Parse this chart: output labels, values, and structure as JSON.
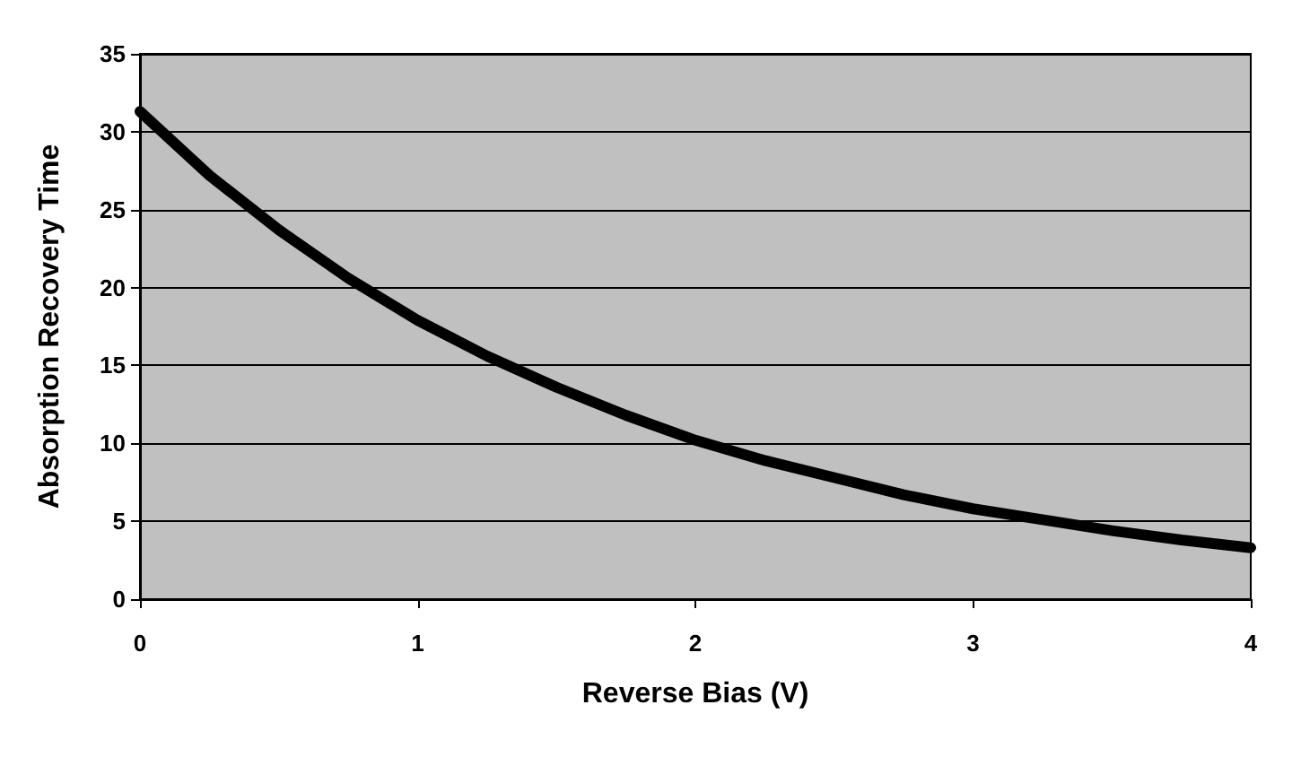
{
  "chart_data": {
    "type": "line",
    "xlabel": "Reverse Bias (V)",
    "ylabel": "Absorption Recovery Time",
    "x": [
      0,
      0.25,
      0.5,
      0.75,
      1,
      1.25,
      1.5,
      1.75,
      2,
      2.25,
      2.5,
      2.75,
      3,
      3.25,
      3.5,
      3.75,
      4
    ],
    "series": [
      {
        "color": "#000000",
        "values": [
          31.3,
          27.2,
          23.7,
          20.6,
          17.9,
          15.6,
          13.6,
          11.8,
          10.2,
          8.9,
          7.8,
          6.7,
          5.8,
          5.1,
          4.4,
          3.8,
          3.3
        ]
      }
    ],
    "xlim": [
      0,
      4
    ],
    "xticks": [
      0,
      1,
      2,
      3,
      4
    ],
    "ylim": [
      0,
      35
    ],
    "yticks": [
      0,
      5,
      10,
      15,
      20,
      25,
      30,
      35
    ],
    "grid": "y",
    "marker": "none",
    "line_style": "solid"
  }
}
